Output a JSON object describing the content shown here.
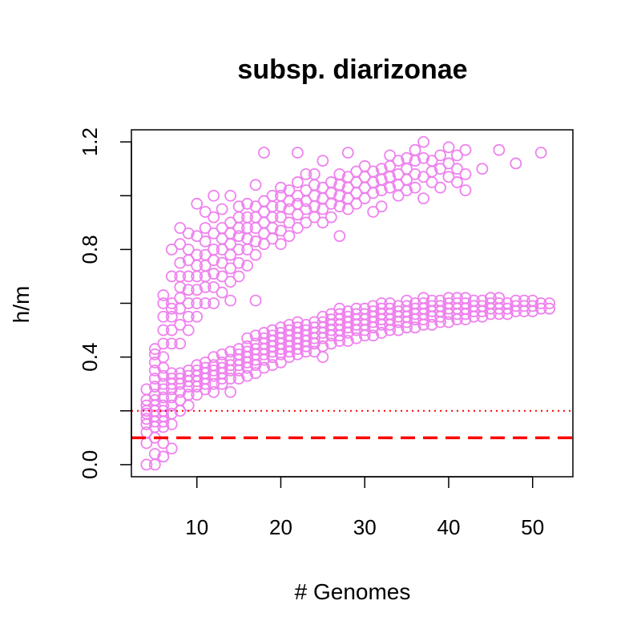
{
  "chart_data": {
    "type": "scatter",
    "title": "subsp. diarizonae",
    "xlabel": "# Genomes",
    "ylabel": "h/m",
    "xlim": [
      2.2,
      54.8
    ],
    "ylim": [
      -0.045,
      1.245
    ],
    "x_ticks": [
      10,
      20,
      30,
      40,
      50
    ],
    "x_tick_labels": [
      "10",
      "20",
      "30",
      "40",
      "50"
    ],
    "y_ticks": [
      0.0,
      0.2,
      0.4,
      0.6,
      0.8,
      1.0,
      1.2
    ],
    "y_tick_labels": [
      "0.0",
      "",
      "0.4",
      "",
      "0.8",
      "",
      "1.2"
    ],
    "grid": false,
    "point_color": "#EE82EE",
    "reference_lines": [
      {
        "y": 0.1,
        "style": "dashed",
        "color": "#FF0000"
      },
      {
        "y": 0.2,
        "style": "dotted",
        "color": "#FF0000"
      }
    ],
    "series": [
      {
        "values_by_x": [
          {
            "x": 4,
            "y": [
              0.0,
              0.08,
              0.12,
              0.15,
              0.17,
              0.19,
              0.2,
              0.22,
              0.24,
              0.28
            ]
          },
          {
            "x": 5,
            "y": [
              0.0,
              0.04,
              0.1,
              0.14,
              0.16,
              0.18,
              0.2,
              0.22,
              0.24,
              0.26,
              0.29,
              0.32,
              0.35,
              0.38,
              0.41,
              0.43
            ]
          },
          {
            "x": 6,
            "y": [
              0.03,
              0.08,
              0.14,
              0.16,
              0.18,
              0.2,
              0.22,
              0.25,
              0.28,
              0.3,
              0.33,
              0.36,
              0.4,
              0.45,
              0.5,
              0.55,
              0.6,
              0.63
            ]
          },
          {
            "x": 7,
            "y": [
              0.06,
              0.15,
              0.19,
              0.22,
              0.25,
              0.28,
              0.3,
              0.32,
              0.34,
              0.45,
              0.5,
              0.55,
              0.58,
              0.6,
              0.7,
              0.8
            ]
          },
          {
            "x": 8,
            "y": [
              0.2,
              0.24,
              0.27,
              0.3,
              0.32,
              0.34,
              0.45,
              0.52,
              0.58,
              0.62,
              0.66,
              0.7,
              0.75,
              0.82,
              0.88
            ]
          },
          {
            "x": 9,
            "y": [
              0.22,
              0.26,
              0.29,
              0.31,
              0.33,
              0.35,
              0.5,
              0.55,
              0.6,
              0.65,
              0.7,
              0.76,
              0.8,
              0.86
            ]
          },
          {
            "x": 10,
            "y": [
              0.26,
              0.29,
              0.31,
              0.33,
              0.35,
              0.37,
              0.55,
              0.6,
              0.65,
              0.7,
              0.74,
              0.78,
              0.85,
              0.97
            ]
          },
          {
            "x": 11,
            "y": [
              0.28,
              0.3,
              0.32,
              0.34,
              0.36,
              0.38,
              0.6,
              0.66,
              0.7,
              0.74,
              0.78,
              0.83,
              0.88,
              0.94
            ]
          },
          {
            "x": 12,
            "y": [
              0.27,
              0.3,
              0.33,
              0.35,
              0.37,
              0.4,
              0.6,
              0.66,
              0.71,
              0.76,
              0.8,
              0.86,
              0.92,
              1.0
            ]
          },
          {
            "x": 13,
            "y": [
              0.3,
              0.32,
              0.34,
              0.36,
              0.38,
              0.41,
              0.64,
              0.7,
              0.75,
              0.8,
              0.84,
              0.88,
              0.95
            ]
          },
          {
            "x": 14,
            "y": [
              0.27,
              0.32,
              0.35,
              0.37,
              0.39,
              0.42,
              0.61,
              0.68,
              0.73,
              0.78,
              0.82,
              0.86,
              0.9,
              1.0
            ]
          },
          {
            "x": 15,
            "y": [
              0.32,
              0.35,
              0.37,
              0.39,
              0.41,
              0.43,
              0.7,
              0.75,
              0.8,
              0.85,
              0.88,
              0.92,
              0.96
            ]
          },
          {
            "x": 16,
            "y": [
              0.33,
              0.36,
              0.38,
              0.4,
              0.42,
              0.44,
              0.47,
              0.74,
              0.8,
              0.84,
              0.88,
              0.92,
              0.97
            ]
          },
          {
            "x": 17,
            "y": [
              0.34,
              0.37,
              0.39,
              0.41,
              0.43,
              0.45,
              0.48,
              0.61,
              0.78,
              0.83,
              0.88,
              0.92,
              0.96,
              1.04
            ]
          },
          {
            "x": 18,
            "y": [
              0.36,
              0.39,
              0.41,
              0.43,
              0.45,
              0.47,
              0.49,
              0.82,
              0.86,
              0.9,
              0.94,
              0.98,
              1.16
            ]
          },
          {
            "x": 19,
            "y": [
              0.37,
              0.4,
              0.42,
              0.44,
              0.46,
              0.48,
              0.5,
              0.84,
              0.88,
              0.92,
              0.96,
              1.0
            ]
          },
          {
            "x": 20,
            "y": [
              0.38,
              0.41,
              0.43,
              0.45,
              0.47,
              0.49,
              0.51,
              0.82,
              0.87,
              0.92,
              0.96,
              1.0,
              1.03
            ]
          },
          {
            "x": 21,
            "y": [
              0.4,
              0.42,
              0.44,
              0.46,
              0.48,
              0.5,
              0.52,
              0.85,
              0.9,
              0.95,
              0.98,
              1.02
            ]
          },
          {
            "x": 22,
            "y": [
              0.41,
              0.43,
              0.45,
              0.47,
              0.49,
              0.51,
              0.53,
              0.88,
              0.93,
              0.97,
              1.0,
              1.05,
              1.16
            ]
          },
          {
            "x": 23,
            "y": [
              0.42,
              0.44,
              0.46,
              0.48,
              0.5,
              0.52,
              0.9,
              0.95,
              0.98,
              1.02,
              1.08
            ]
          },
          {
            "x": 24,
            "y": [
              0.42,
              0.45,
              0.47,
              0.49,
              0.51,
              0.53,
              0.92,
              0.96,
              1.0,
              1.04,
              1.08
            ]
          },
          {
            "x": 25,
            "y": [
              0.4,
              0.44,
              0.47,
              0.49,
              0.51,
              0.53,
              0.55,
              0.9,
              0.95,
              0.99,
              1.03,
              1.13
            ]
          },
          {
            "x": 26,
            "y": [
              0.45,
              0.48,
              0.5,
              0.52,
              0.54,
              0.56,
              0.92,
              0.97,
              1.01,
              1.05
            ]
          },
          {
            "x": 27,
            "y": [
              0.46,
              0.48,
              0.5,
              0.52,
              0.54,
              0.56,
              0.58,
              0.85,
              0.96,
              1.0,
              1.04,
              1.08
            ]
          },
          {
            "x": 28,
            "y": [
              0.46,
              0.49,
              0.51,
              0.53,
              0.55,
              0.57,
              0.95,
              0.99,
              1.03,
              1.07,
              1.16
            ]
          },
          {
            "x": 29,
            "y": [
              0.47,
              0.5,
              0.52,
              0.54,
              0.56,
              0.58,
              0.97,
              1.01,
              1.05,
              1.09
            ]
          },
          {
            "x": 30,
            "y": [
              0.48,
              0.5,
              0.52,
              0.54,
              0.56,
              0.58,
              0.99,
              1.03,
              1.07,
              1.11
            ]
          },
          {
            "x": 31,
            "y": [
              0.48,
              0.51,
              0.53,
              0.55,
              0.57,
              0.59,
              0.94,
              1.01,
              1.05,
              1.09
            ]
          },
          {
            "x": 32,
            "y": [
              0.49,
              0.52,
              0.54,
              0.56,
              0.58,
              0.6,
              0.96,
              1.02,
              1.06,
              1.1
            ]
          },
          {
            "x": 33,
            "y": [
              0.5,
              0.52,
              0.54,
              0.56,
              0.58,
              0.6,
              1.03,
              1.07,
              1.11,
              1.15
            ]
          },
          {
            "x": 34,
            "y": [
              0.5,
              0.53,
              0.55,
              0.57,
              0.59,
              1.0,
              1.04,
              1.08,
              1.13
            ]
          },
          {
            "x": 35,
            "y": [
              0.51,
              0.53,
              0.55,
              0.57,
              0.59,
              0.61,
              1.02,
              1.06,
              1.1,
              1.14
            ]
          },
          {
            "x": 36,
            "y": [
              0.51,
              0.54,
              0.56,
              0.58,
              0.6,
              1.03,
              1.08,
              1.13,
              1.17
            ]
          },
          {
            "x": 37,
            "y": [
              0.52,
              0.54,
              0.56,
              0.58,
              0.6,
              0.62,
              0.99,
              1.07,
              1.14,
              1.2
            ]
          },
          {
            "x": 38,
            "y": [
              0.52,
              0.55,
              0.57,
              0.59,
              0.61,
              1.05,
              1.09,
              1.13
            ]
          },
          {
            "x": 39,
            "y": [
              0.53,
              0.55,
              0.57,
              0.59,
              0.61,
              1.03,
              1.1,
              1.15
            ]
          },
          {
            "x": 40,
            "y": [
              0.53,
              0.56,
              0.58,
              0.6,
              0.62,
              1.07,
              1.12,
              1.18
            ]
          },
          {
            "x": 41,
            "y": [
              0.54,
              0.56,
              0.58,
              0.6,
              0.62,
              1.05,
              1.1,
              1.15
            ]
          },
          {
            "x": 42,
            "y": [
              0.54,
              0.56,
              0.58,
              0.6,
              0.62,
              1.02,
              1.08,
              1.17
            ]
          },
          {
            "x": 43,
            "y": [
              0.55,
              0.57,
              0.59,
              0.61
            ]
          },
          {
            "x": 44,
            "y": [
              0.55,
              0.57,
              0.59,
              0.61,
              1.1
            ]
          },
          {
            "x": 45,
            "y": [
              0.56,
              0.58,
              0.6,
              0.62
            ]
          },
          {
            "x": 46,
            "y": [
              0.56,
              0.58,
              0.6,
              0.62,
              1.17
            ]
          },
          {
            "x": 47,
            "y": [
              0.56,
              0.58,
              0.6
            ]
          },
          {
            "x": 48,
            "y": [
              0.57,
              0.59,
              0.61,
              1.12
            ]
          },
          {
            "x": 49,
            "y": [
              0.57,
              0.59,
              0.61
            ]
          },
          {
            "x": 50,
            "y": [
              0.57,
              0.59,
              0.61
            ]
          },
          {
            "x": 51,
            "y": [
              0.58,
              0.6,
              1.16
            ]
          },
          {
            "x": 52,
            "y": [
              0.58,
              0.6
            ]
          }
        ]
      }
    ]
  }
}
